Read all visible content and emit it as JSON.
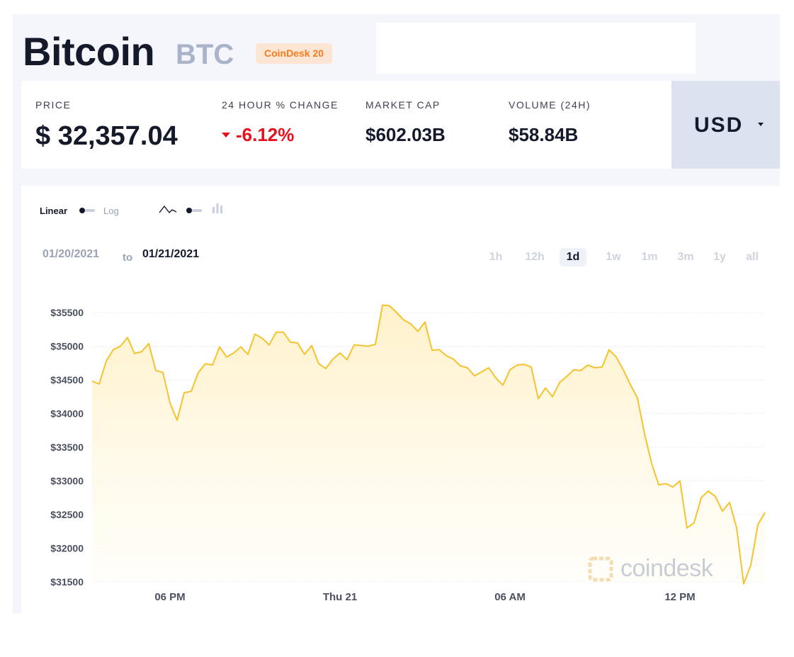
{
  "header": {
    "name": "Bitcoin",
    "symbol": "BTC",
    "badge": "CoinDesk 20"
  },
  "stats": [
    {
      "label": "PRICE",
      "value": "$ 32,357.04"
    },
    {
      "label": "24 HOUR % CHANGE",
      "value": "-6.12%"
    },
    {
      "label": "MARKET CAP",
      "value": "$602.03B"
    },
    {
      "label": "VOLUME (24H)",
      "value": "$58.84B"
    }
  ],
  "currency": {
    "selected": "USD"
  },
  "controls": {
    "scale_linear": "Linear",
    "scale_log": "Log",
    "date_from": "01/20/2021",
    "date_to_word": "to",
    "date_to": "01/21/2021",
    "ranges": [
      "1h",
      "12h",
      "1d",
      "1w",
      "1m",
      "3m",
      "1y",
      "all"
    ],
    "active_range": "1d"
  },
  "watermark": "coindesk",
  "colors": {
    "line": "#f6c32c",
    "fill_top": "#fff1c7",
    "negative": "#e8121f",
    "badge_text": "#f57c20"
  },
  "icons": {
    "line_chart": "line-chart-icon",
    "candlestick": "candlestick-icon",
    "caret": "caret-down-icon"
  },
  "chart_data": {
    "type": "area",
    "xlabel": "",
    "ylabel": "",
    "ylim": [
      31500,
      35500
    ],
    "yticks": [
      35500,
      35000,
      34500,
      34000,
      33500,
      33000,
      32500,
      32000,
      31500
    ],
    "ytick_labels": [
      "$35500",
      "$35000",
      "$34500",
      "$34000",
      "$33500",
      "$33000",
      "$32500",
      "$32000",
      "$31500"
    ],
    "xlim": [
      15.25,
      39.0
    ],
    "xticks": [
      18,
      24,
      30,
      36
    ],
    "xtick_labels": [
      "06 PM",
      "Thu 21",
      "06 AM",
      "12 PM"
    ],
    "x_unit_note": "hours since 01/20/2021 00:00",
    "series": [
      {
        "name": "",
        "x": [
          15.25,
          15.5,
          15.75,
          16.0,
          16.25,
          16.5,
          16.75,
          17.0,
          17.25,
          17.5,
          17.75,
          18.0,
          18.25,
          18.5,
          18.75,
          19.0,
          19.25,
          19.5,
          19.75,
          20.0,
          20.25,
          20.5,
          20.75,
          21.0,
          21.25,
          21.5,
          21.75,
          22.0,
          22.25,
          22.5,
          22.75,
          23.0,
          23.25,
          23.5,
          23.75,
          24.0,
          24.25,
          24.5,
          24.75,
          25.0,
          25.25,
          25.5,
          25.75,
          26.0,
          26.25,
          26.5,
          26.75,
          27.0,
          27.25,
          27.5,
          27.75,
          28.0,
          28.25,
          28.5,
          28.75,
          29.0,
          29.25,
          29.5,
          29.75,
          30.0,
          30.25,
          30.5,
          30.75,
          31.0,
          31.25,
          31.5,
          31.75,
          32.0,
          32.25,
          32.5,
          32.75,
          33.0,
          33.25,
          33.5,
          33.75,
          34.0,
          34.25,
          34.5,
          34.75,
          35.0,
          35.25,
          35.5,
          35.75,
          36.0,
          36.25,
          36.5,
          36.75,
          37.0,
          37.25,
          37.5,
          37.75,
          38.0,
          38.25,
          38.5,
          38.75,
          39.0
        ],
        "y": [
          34480,
          34440,
          34780,
          34950,
          35000,
          35130,
          34890,
          34920,
          35040,
          34640,
          34610,
          34160,
          33900,
          34310,
          34330,
          34610,
          34740,
          34720,
          34990,
          34840,
          34900,
          34990,
          34880,
          35180,
          35120,
          35020,
          35210,
          35210,
          35060,
          35050,
          34880,
          35010,
          34740,
          34670,
          34810,
          34900,
          34800,
          35020,
          35010,
          35000,
          35030,
          35610,
          35600,
          35500,
          35390,
          35330,
          35220,
          35360,
          34940,
          34950,
          34860,
          34810,
          34710,
          34680,
          34560,
          34620,
          34680,
          34530,
          34420,
          34650,
          34720,
          34730,
          34690,
          34220,
          34380,
          34250,
          34460,
          34550,
          34650,
          34640,
          34720,
          34680,
          34690,
          34950,
          34840,
          34650,
          34430,
          34230,
          33700,
          33260,
          32940,
          32960,
          32910,
          33000,
          32300,
          32380,
          32750,
          32850,
          32770,
          32550,
          32680,
          32300,
          31470,
          31750,
          32350,
          32530
        ]
      }
    ],
    "grid": true,
    "legend": "none"
  }
}
